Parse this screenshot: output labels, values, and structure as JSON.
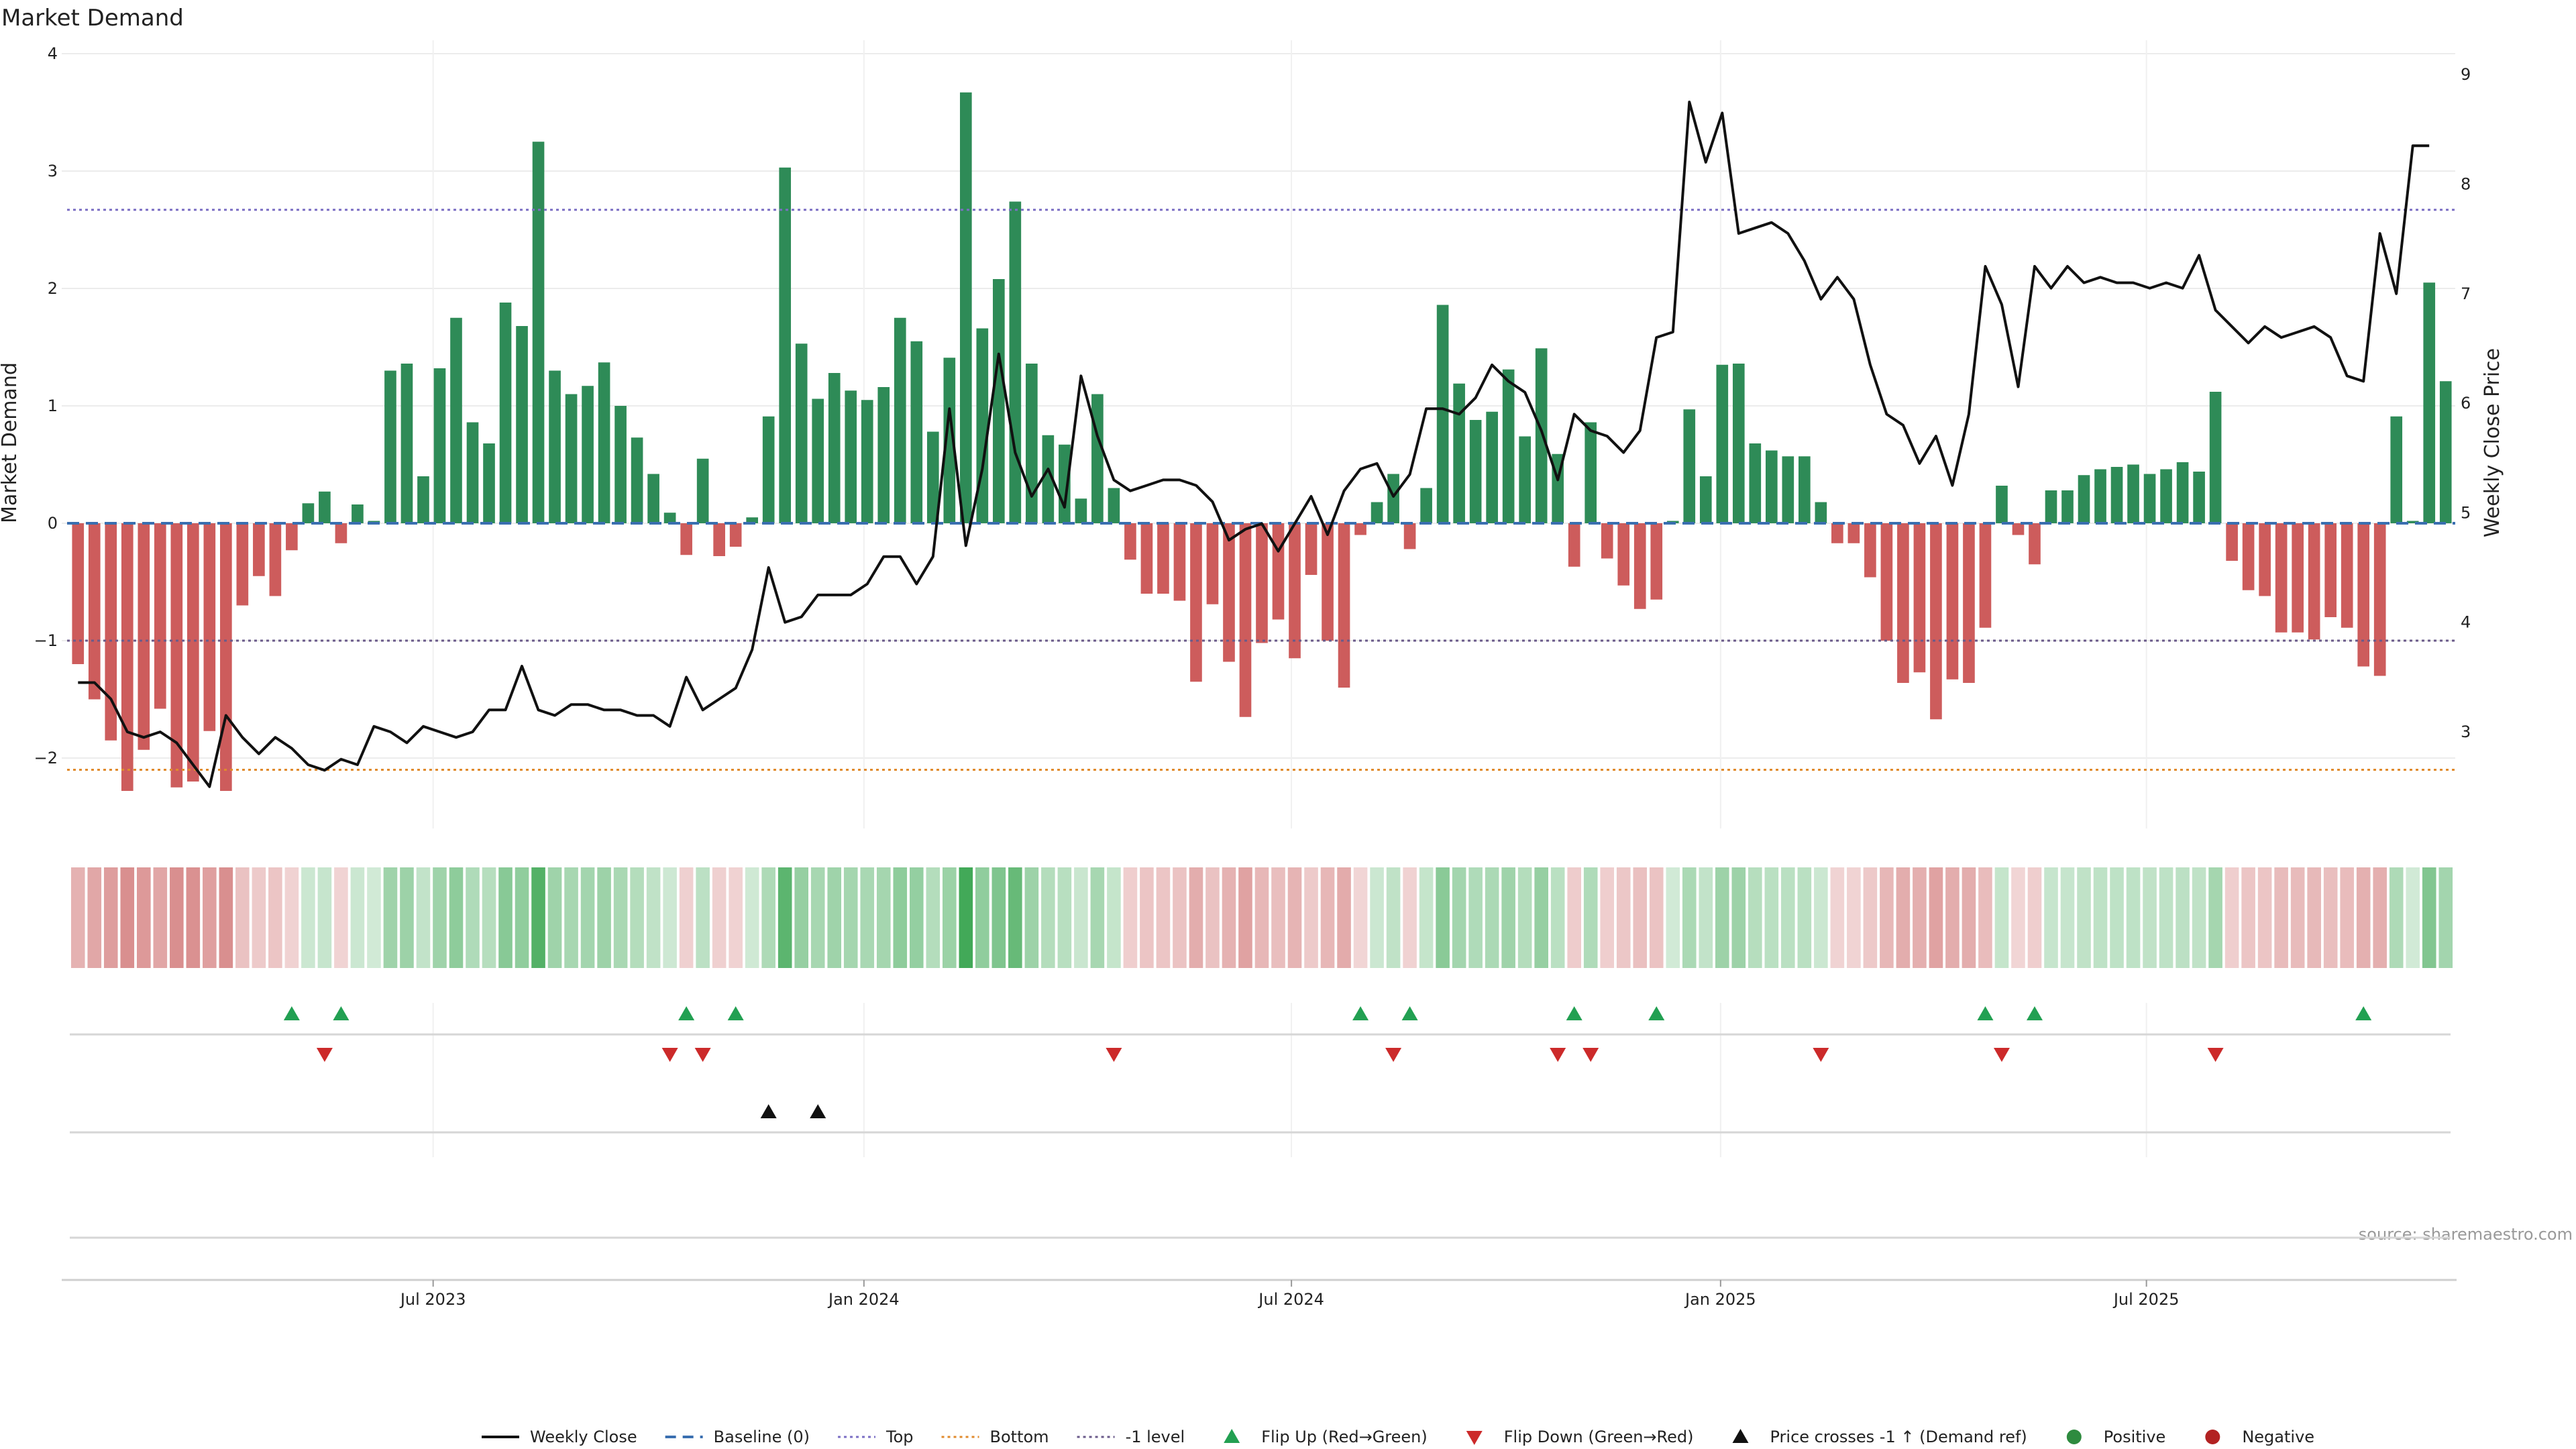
{
  "chart_data": {
    "type": "bar",
    "title": "Market Demand",
    "ylabel_left": "Market Demand",
    "ylabel_right": "Weekly Close Price",
    "y_left_range": [
      -2.6,
      4.0
    ],
    "y_left_ticks": [
      "4",
      "3",
      "2",
      "1",
      "0",
      "−1",
      "−2"
    ],
    "y_left_tick_values": [
      4,
      3,
      2,
      1,
      0,
      -1,
      -2
    ],
    "y_right_range": [
      2.0,
      9.0
    ],
    "y_right_ticks": [
      "9",
      "8",
      "7",
      "6",
      "5",
      "4",
      "3"
    ],
    "y_right_tick_values": [
      9,
      8,
      7,
      6,
      5,
      4,
      3
    ],
    "x_ticks": [
      "Jul 2023",
      "Jan 2024",
      "Jul 2024",
      "Jan 2025",
      "Jul 2025"
    ],
    "x_tick_index": [
      21.6,
      47.8,
      73.8,
      99.9,
      125.8
    ],
    "reference_lines": [
      {
        "name": "Top",
        "value": 2.67,
        "color": "#7b6fc4",
        "style": "dotted"
      },
      {
        "name": "Bottom",
        "value": -2.1,
        "color": "#e08a2c",
        "style": "dotted"
      },
      {
        "name": "-1 level",
        "value": -1.0,
        "color": "#6a5a8a",
        "style": "dotted"
      },
      {
        "name": "Baseline (0)",
        "value": 0,
        "color": "#3a6fb0",
        "style": "dashed"
      }
    ],
    "series": [
      {
        "name": "Market Demand",
        "values": [
          -1.2,
          -1.5,
          -1.85,
          -2.28,
          -1.93,
          -1.58,
          -2.25,
          -2.2,
          -1.77,
          -2.28,
          -0.7,
          -0.45,
          -0.62,
          -0.23,
          0.17,
          0.27,
          -0.17,
          0.16,
          0.02,
          1.3,
          1.36,
          0.4,
          1.32,
          1.75,
          0.86,
          0.68,
          1.88,
          1.68,
          3.25,
          1.3,
          1.1,
          1.17,
          1.37,
          1.0,
          0.73,
          0.42,
          0.09,
          -0.27,
          0.55,
          -0.28,
          -0.2,
          0.05,
          0.91,
          3.03,
          1.53,
          1.06,
          1.28,
          1.13,
          1.05,
          1.16,
          1.75,
          1.55,
          0.78,
          1.41,
          3.67,
          1.66,
          2.08,
          2.74,
          1.36,
          0.75,
          0.67,
          0.21,
          1.1,
          0.3,
          -0.31,
          -0.6,
          -0.6,
          -0.66,
          -1.35,
          -0.69,
          -1.18,
          -1.65,
          -1.02,
          -0.82,
          -1.15,
          -0.44,
          -1.0,
          -1.4,
          -0.1,
          0.18,
          0.42,
          -0.22,
          0.3,
          1.86,
          1.19,
          0.88,
          0.95,
          1.31,
          0.74,
          1.49,
          0.59,
          -0.37,
          0.86,
          -0.3,
          -0.53,
          -0.73,
          -0.65,
          0.02,
          0.97,
          0.4,
          1.35,
          1.36,
          0.68,
          0.62,
          0.57,
          0.57,
          0.18,
          -0.17,
          -0.17,
          -0.46,
          -1.0,
          -1.36,
          -1.27,
          -1.67,
          -1.33,
          -1.36,
          -0.89,
          0.32,
          -0.1,
          -0.35,
          0.28,
          0.28,
          0.41,
          0.46,
          0.48,
          0.5,
          0.42,
          0.46,
          0.52,
          0.44,
          1.12,
          -0.32,
          -0.57,
          -0.62,
          -0.93,
          -0.93,
          -0.99,
          -0.8,
          -0.89,
          -1.22,
          -1.3,
          0.91,
          0.02,
          2.05,
          1.21
        ]
      },
      {
        "name": "Weekly Close",
        "values": [
          3.45,
          3.45,
          3.3,
          3.0,
          2.95,
          3.0,
          2.9,
          2.7,
          2.5,
          3.15,
          2.95,
          2.8,
          2.95,
          2.85,
          2.7,
          2.65,
          2.75,
          2.7,
          3.05,
          3.0,
          2.9,
          3.05,
          3.0,
          2.95,
          3.0,
          3.2,
          3.2,
          3.6,
          3.2,
          3.15,
          3.25,
          3.25,
          3.2,
          3.2,
          3.15,
          3.15,
          3.05,
          3.5,
          3.2,
          3.3,
          3.4,
          3.75,
          4.5,
          4.0,
          4.05,
          4.25,
          4.25,
          4.25,
          4.35,
          4.6,
          4.6,
          4.35,
          4.6,
          5.95,
          4.7,
          5.4,
          6.45,
          5.55,
          5.15,
          5.4,
          5.05,
          6.25,
          5.7,
          5.3,
          5.2,
          5.25,
          5.3,
          5.3,
          5.25,
          5.1,
          4.75,
          4.85,
          4.9,
          4.65,
          4.9,
          5.15,
          4.8,
          5.2,
          5.4,
          5.45,
          5.15,
          5.35,
          5.95,
          5.95,
          5.9,
          6.05,
          6.35,
          6.2,
          6.1,
          5.75,
          5.3,
          5.9,
          5.75,
          5.7,
          5.55,
          5.75,
          6.6,
          6.65,
          8.75,
          8.2,
          8.65,
          7.55,
          7.6,
          7.65,
          7.55,
          7.3,
          6.95,
          7.15,
          6.95,
          6.35,
          5.9,
          5.8,
          5.45,
          5.7,
          5.25,
          5.9,
          7.25,
          6.9,
          6.15,
          7.25,
          7.05,
          7.25,
          7.1,
          7.15,
          7.1,
          7.1,
          7.05,
          7.1,
          7.05,
          7.35,
          6.85,
          6.7,
          6.55,
          6.7,
          6.6,
          6.65,
          6.7,
          6.6,
          6.25,
          6.2,
          7.55,
          7.0,
          8.35,
          8.35
        ]
      }
    ],
    "flip_up_index": [
      13,
      16,
      37,
      40,
      78,
      81,
      91,
      96,
      116,
      119,
      139
    ],
    "flip_down_index": [
      15,
      36,
      38,
      63,
      80,
      90,
      92,
      106,
      117,
      130
    ],
    "price_cross_index": [
      42,
      45
    ],
    "legend": [
      {
        "label": "Weekly Close",
        "kind": "line",
        "color": "#111111"
      },
      {
        "label": "Baseline (0)",
        "kind": "dashed",
        "color": "#3a6fb0"
      },
      {
        "label": "Top",
        "kind": "dotted",
        "color": "#7b6fc4"
      },
      {
        "label": "Bottom",
        "kind": "dotted",
        "color": "#e08a2c"
      },
      {
        "label": "-1 level",
        "kind": "dotted",
        "color": "#6a5a8a"
      },
      {
        "label": "Flip Up (Red→Green)",
        "kind": "tri-up",
        "color": "#22a052"
      },
      {
        "label": "Flip Down (Green→Red)",
        "kind": "tri-down",
        "color": "#cc2a2a"
      },
      {
        "label": "Price crosses -1 ↑ (Demand ref)",
        "kind": "tri-up",
        "color": "#111111"
      },
      {
        "label": "Positive",
        "kind": "dot",
        "color": "#2e8b3f"
      },
      {
        "label": "Negative",
        "kind": "dot",
        "color": "#b22222"
      }
    ],
    "colors": {
      "positive": "#2e8b57",
      "negative": "#cd5c5c"
    },
    "source": "source: sharemaestro.com"
  }
}
